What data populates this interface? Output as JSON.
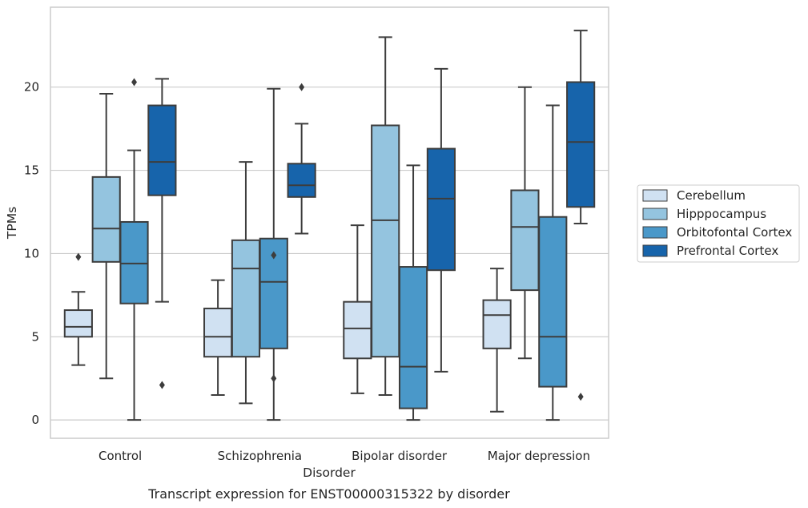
{
  "chart_data": {
    "type": "box",
    "xlabel": "Disorder",
    "ylabel": "TPMs",
    "caption": "Transcript expression for ENST00000315322 by disorder",
    "ylim": [
      -1.1,
      24.8
    ],
    "yticks": [
      "0",
      "5",
      "10",
      "15",
      "20"
    ],
    "grid": true,
    "legend_position": "right",
    "categories": [
      "Control",
      "Schizophrenia",
      "Bipolar disorder",
      "Major depression"
    ],
    "series": [
      {
        "name": "Cerebellum",
        "color": "#d0e1f2",
        "boxes": [
          {
            "whisker_low": 3.3,
            "q1": 5.0,
            "median": 5.6,
            "q3": 6.6,
            "whisker_high": 7.7,
            "outliers": [
              9.8
            ]
          },
          {
            "whisker_low": 1.5,
            "q1": 3.8,
            "median": 5.0,
            "q3": 6.7,
            "whisker_high": 8.4,
            "outliers": []
          },
          {
            "whisker_low": 1.6,
            "q1": 3.7,
            "median": 5.5,
            "q3": 7.1,
            "whisker_high": 11.7,
            "outliers": []
          },
          {
            "whisker_low": 0.5,
            "q1": 4.3,
            "median": 6.3,
            "q3": 7.2,
            "whisker_high": 9.1,
            "outliers": []
          }
        ]
      },
      {
        "name": "Hipppocampus",
        "color": "#94c4df",
        "boxes": [
          {
            "whisker_low": 2.5,
            "q1": 9.5,
            "median": 11.5,
            "q3": 14.6,
            "whisker_high": 19.6,
            "outliers": []
          },
          {
            "whisker_low": 1.0,
            "q1": 3.8,
            "median": 9.1,
            "q3": 10.8,
            "whisker_high": 15.5,
            "outliers": []
          },
          {
            "whisker_low": 1.5,
            "q1": 3.8,
            "median": 12.0,
            "q3": 17.7,
            "whisker_high": 23.0,
            "outliers": []
          },
          {
            "whisker_low": 3.7,
            "q1": 7.8,
            "median": 11.6,
            "q3": 13.8,
            "whisker_high": 20.0,
            "outliers": []
          }
        ]
      },
      {
        "name": "Orbitofontal Cortex",
        "color": "#4a98c9",
        "boxes": [
          {
            "whisker_low": 0.0,
            "q1": 7.0,
            "median": 9.4,
            "q3": 11.9,
            "whisker_high": 16.2,
            "outliers": [
              20.3
            ]
          },
          {
            "whisker_low": 0.0,
            "q1": 4.3,
            "median": 8.3,
            "q3": 10.9,
            "whisker_high": 19.9,
            "outliers": [
              9.9,
              2.5
            ]
          },
          {
            "whisker_low": 0.0,
            "q1": 0.7,
            "median": 3.2,
            "q3": 9.2,
            "whisker_high": 15.3,
            "outliers": []
          },
          {
            "whisker_low": 0.0,
            "q1": 2.0,
            "median": 5.0,
            "q3": 12.2,
            "whisker_high": 18.9,
            "outliers": []
          }
        ]
      },
      {
        "name": "Prefrontal Cortex",
        "color": "#1764ab",
        "boxes": [
          {
            "whisker_low": 7.1,
            "q1": 13.5,
            "median": 15.5,
            "q3": 18.9,
            "whisker_high": 20.5,
            "outliers": [
              2.1
            ]
          },
          {
            "whisker_low": 11.2,
            "q1": 13.4,
            "median": 14.1,
            "q3": 15.4,
            "whisker_high": 17.8,
            "outliers": [
              20.0
            ]
          },
          {
            "whisker_low": 2.9,
            "q1": 9.0,
            "median": 13.3,
            "q3": 16.3,
            "whisker_high": 21.1,
            "outliers": []
          },
          {
            "whisker_low": 11.8,
            "q1": 12.8,
            "median": 16.7,
            "q3": 20.3,
            "whisker_high": 23.4,
            "outliers": [
              1.4
            ]
          }
        ]
      }
    ]
  }
}
